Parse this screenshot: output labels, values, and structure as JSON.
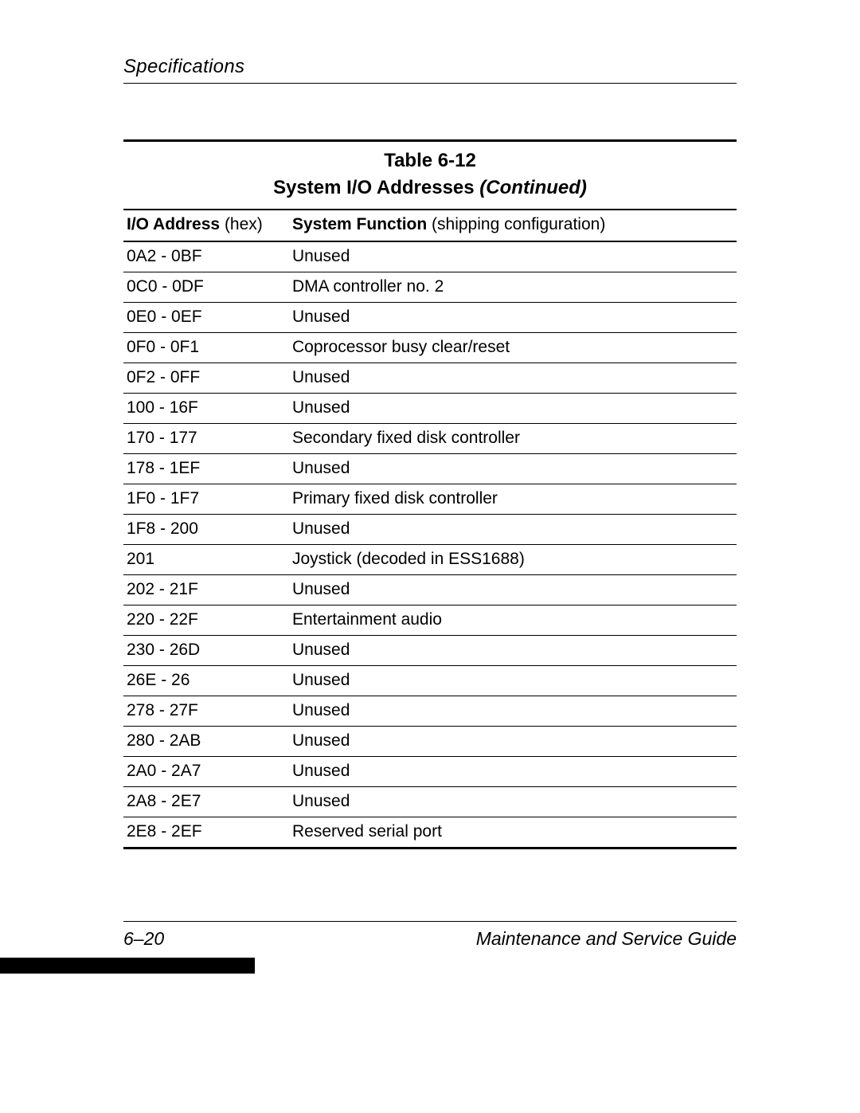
{
  "running_head": "Specifications",
  "table": {
    "caption": "Table 6-12",
    "title_main": "System I/O Addresses ",
    "title_cont": "(Continued)",
    "header": {
      "col0_label": "I/O Address ",
      "col0_paren": "(hex)",
      "col1_label": "System Function ",
      "col1_paren": "(shipping configuration)"
    },
    "rows": [
      {
        "addr": "0A2 - 0BF",
        "func": "Unused"
      },
      {
        "addr": "0C0 - 0DF",
        "func": "DMA controller no. 2"
      },
      {
        "addr": "0E0 - 0EF",
        "func": "Unused"
      },
      {
        "addr": "0F0 - 0F1",
        "func": "Coprocessor busy clear/reset"
      },
      {
        "addr": "0F2 - 0FF",
        "func": "Unused"
      },
      {
        "addr": "100 - 16F",
        "func": "Unused"
      },
      {
        "addr": "170 - 177",
        "func": "Secondary fixed disk controller"
      },
      {
        "addr": "178 - 1EF",
        "func": "Unused"
      },
      {
        "addr": "1F0 - 1F7",
        "func": "Primary fixed disk controller"
      },
      {
        "addr": "1F8 - 200",
        "func": "Unused"
      },
      {
        "addr": "201",
        "func": "Joystick (decoded in ESS1688)"
      },
      {
        "addr": "202 - 21F",
        "func": "Unused"
      },
      {
        "addr": "220 - 22F",
        "func": "Entertainment audio"
      },
      {
        "addr": "230 - 26D",
        "func": "Unused"
      },
      {
        "addr": "26E - 26",
        "func": "Unused"
      },
      {
        "addr": "278 - 27F",
        "func": "Unused"
      },
      {
        "addr": "280 - 2AB",
        "func": "Unused"
      },
      {
        "addr": "2A0 - 2A7",
        "func": "Unused"
      },
      {
        "addr": "2A8 - 2E7",
        "func": "Unused"
      },
      {
        "addr": "2E8 - 2EF",
        "func": "Reserved serial port"
      }
    ]
  },
  "footer": {
    "page_number": "6–20",
    "doc_title": "Maintenance and Service Guide"
  }
}
